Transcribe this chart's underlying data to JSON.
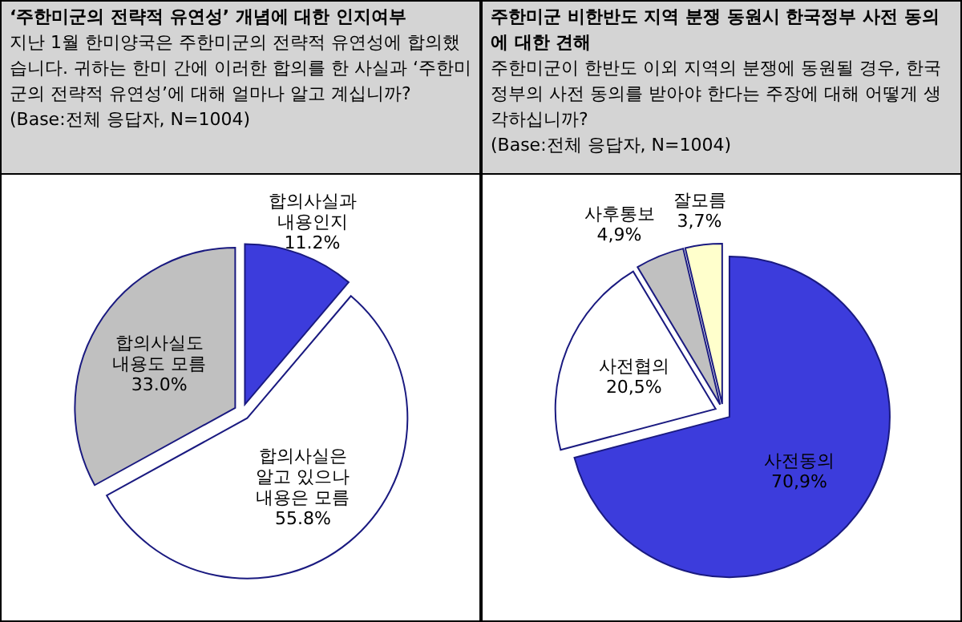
{
  "chart_data": [
    {
      "type": "pie",
      "title": "‘주한미군의 전략적 유연성’ 개념에 대한 인지여부",
      "subtitle": "지난 1월 한미양국은 주한미군의 전략적 유연성에 합의했습니다. 귀하는 한미 간에 이러한 합의를 한 사실과 ‘주한미군의 전략적 유연성’에 대해 얼마나 알고 계십니까?",
      "annotations": [
        "(Base:전체 응답자,  N=1004)"
      ],
      "categories": [
        "합의사실과\n내용인지",
        "합의사실은\n알고 있으나\n내용은 모름",
        "합의사실도\n내용도 모름"
      ],
      "values": [
        11.2,
        55.8,
        33.0
      ],
      "value_labels": [
        "11.2%",
        "55.8%",
        "33.0%"
      ],
      "colors": [
        "#3c3cdc",
        "#ffffff",
        "#c0c0c0"
      ]
    },
    {
      "type": "pie",
      "title": "주한미군 비한반도 지역 분쟁 동원시 한국정부 사전 동의에 대한 견해",
      "subtitle": "주한미군이 한반도 이외 지역의 분쟁에 동원될 경우, 한국 정부의 사전 동의를 받아야 한다는 주장에 대해 어떻게 생각하십니까?",
      "annotations": [
        "(Base:전체 응답자,  N=1004)"
      ],
      "categories": [
        "사전동의",
        "사전협의",
        "사후통보",
        "잘모름"
      ],
      "values": [
        70.9,
        20.5,
        4.9,
        3.7
      ],
      "value_labels": [
        "70,9%",
        "20,5%",
        "4,9%",
        "3,7%"
      ],
      "colors": [
        "#3c3cdc",
        "#ffffff",
        "#c0c0c0",
        "#ffffcc"
      ]
    }
  ]
}
